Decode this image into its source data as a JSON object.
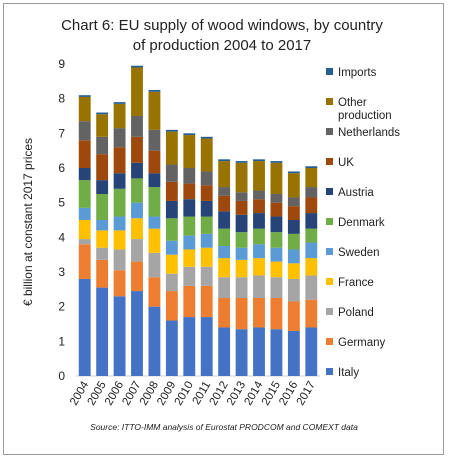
{
  "chart_data": {
    "type": "bar",
    "stacked": true,
    "title_lines": [
      "Chart 6: EU supply of wood windows, by country",
      "of production 2004 to 2017"
    ],
    "ylabel": "€ billion at constant 2017 prices",
    "xlabel": "",
    "ylim": [
      0,
      9
    ],
    "yticks": [
      "0",
      "1",
      "2",
      "3",
      "4",
      "5",
      "6",
      "7",
      "8",
      "9"
    ],
    "grid": false,
    "legend_position": "right",
    "source": "Source: ITTO-IMM analysis of Eurostat PRODCOM and COMEXT data",
    "categories": [
      "2004",
      "2005",
      "2006",
      "2007",
      "2008",
      "2009",
      "2010",
      "2011",
      "2012",
      "2013",
      "2014",
      "2015",
      "2016",
      "2017"
    ],
    "series": [
      {
        "name": "Italy",
        "color": "#4472C4",
        "values": [
          2.8,
          2.55,
          2.3,
          2.45,
          2.0,
          1.6,
          1.7,
          1.7,
          1.4,
          1.35,
          1.4,
          1.35,
          1.3,
          1.4
        ]
      },
      {
        "name": "Germany",
        "color": "#ED7D31",
        "values": [
          1.0,
          0.8,
          0.75,
          0.85,
          0.85,
          0.85,
          0.9,
          0.9,
          0.85,
          0.9,
          0.85,
          0.9,
          0.85,
          0.8
        ]
      },
      {
        "name": "Poland",
        "color": "#A5A5A5",
        "values": [
          0.15,
          0.35,
          0.6,
          0.65,
          0.7,
          0.5,
          0.55,
          0.55,
          0.6,
          0.6,
          0.65,
          0.6,
          0.65,
          0.7
        ]
      },
      {
        "name": "France",
        "color": "#FFC000",
        "values": [
          0.55,
          0.5,
          0.55,
          0.6,
          0.7,
          0.55,
          0.5,
          0.55,
          0.55,
          0.5,
          0.5,
          0.45,
          0.45,
          0.5
        ]
      },
      {
        "name": "Sweden",
        "color": "#5B9BD5",
        "values": [
          0.35,
          0.3,
          0.4,
          0.45,
          0.35,
          0.4,
          0.4,
          0.4,
          0.35,
          0.35,
          0.4,
          0.4,
          0.4,
          0.45
        ]
      },
      {
        "name": "Denmark",
        "color": "#70AD47",
        "values": [
          0.8,
          0.75,
          0.8,
          0.7,
          0.85,
          0.65,
          0.55,
          0.5,
          0.5,
          0.45,
          0.45,
          0.45,
          0.45,
          0.4
        ]
      },
      {
        "name": "Austria",
        "color": "#264478",
        "values": [
          0.35,
          0.4,
          0.45,
          0.45,
          0.4,
          0.5,
          0.5,
          0.45,
          0.5,
          0.5,
          0.45,
          0.45,
          0.4,
          0.45
        ]
      },
      {
        "name": "UK",
        "color": "#9E480E",
        "values": [
          0.8,
          0.75,
          0.75,
          0.75,
          0.65,
          0.55,
          0.45,
          0.45,
          0.45,
          0.4,
          0.4,
          0.4,
          0.4,
          0.45
        ]
      },
      {
        "name": "Netherlands",
        "color": "#636363",
        "values": [
          0.55,
          0.5,
          0.55,
          0.6,
          0.6,
          0.5,
          0.45,
          0.4,
          0.25,
          0.25,
          0.25,
          0.25,
          0.25,
          0.3
        ]
      },
      {
        "name": "Other production",
        "color": "#997300",
        "values": [
          0.7,
          0.65,
          0.7,
          1.4,
          1.1,
          0.95,
          0.95,
          0.95,
          0.75,
          0.85,
          0.85,
          0.9,
          0.7,
          0.55
        ]
      },
      {
        "name": "Imports",
        "color": "#255E91",
        "values": [
          0.05,
          0.05,
          0.05,
          0.05,
          0.05,
          0.05,
          0.05,
          0.05,
          0.05,
          0.05,
          0.05,
          0.05,
          0.05,
          0.05
        ]
      }
    ]
  }
}
